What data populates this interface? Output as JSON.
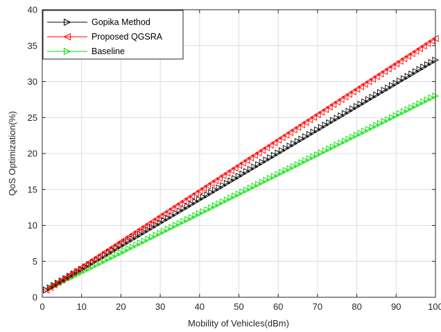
{
  "chart_data": {
    "type": "line",
    "title": "",
    "xlabel": "Mobility of Vehicles(dBm)",
    "ylabel": "QoS Optimization(%)",
    "xlim": [
      0,
      100
    ],
    "ylim": [
      0,
      40
    ],
    "xticks": [
      0,
      10,
      20,
      30,
      40,
      50,
      60,
      70,
      80,
      90,
      100
    ],
    "yticks": [
      0,
      5,
      10,
      15,
      20,
      25,
      30,
      35,
      40
    ],
    "grid": true,
    "legend_position": "top-left",
    "x": [
      1,
      100
    ],
    "series": [
      {
        "name": "Gopika Method",
        "color": "#000000",
        "marker": "triangle-right",
        "values": [
          1.0,
          33.0
        ]
      },
      {
        "name": "Proposed QGSRA",
        "color": "#ff0000",
        "marker": "triangle-left",
        "values": [
          1.0,
          36.0
        ]
      },
      {
        "name": "Baseline",
        "color": "#00e000",
        "marker": "triangle-right",
        "values": [
          1.0,
          28.0
        ]
      }
    ]
  }
}
